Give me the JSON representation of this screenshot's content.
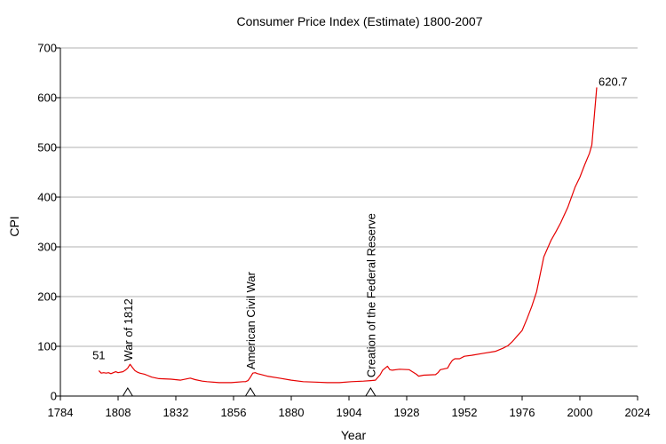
{
  "chart_data": {
    "type": "line",
    "title": "Consumer Price Index (Estimate) 1800-2007",
    "xlabel": "Year",
    "ylabel": "CPI",
    "xlim": [
      1784,
      2024
    ],
    "ylim": [
      0,
      700
    ],
    "x_ticks": [
      "1784",
      "1808",
      "1832",
      "1856",
      "1880",
      "1904",
      "1928",
      "1952",
      "1976",
      "2000",
      "2024"
    ],
    "y_ticks": [
      "0",
      "100",
      "200",
      "300",
      "400",
      "500",
      "600",
      "700"
    ],
    "grid": true,
    "line_color": "#e60000",
    "series": [
      {
        "x": [
          1800,
          1801,
          1802,
          1803,
          1804,
          1805,
          1806,
          1807,
          1808,
          1809,
          1810,
          1811,
          1812,
          1813,
          1814,
          1815,
          1816,
          1817,
          1818,
          1819,
          1820,
          1822,
          1825,
          1830,
          1834,
          1838,
          1840,
          1843,
          1845,
          1850,
          1855,
          1860,
          1861,
          1862,
          1863,
          1864,
          1865,
          1866,
          1867,
          1870,
          1875,
          1880,
          1885,
          1890,
          1895,
          1900,
          1905,
          1910,
          1913,
          1915,
          1917,
          1918,
          1920,
          1921,
          1922,
          1925,
          1929,
          1930,
          1932,
          1933,
          1935,
          1940,
          1941,
          1942,
          1945,
          1946,
          1947,
          1948,
          1950,
          1952,
          1955,
          1960,
          1965,
          1968,
          1970,
          1972,
          1974,
          1976,
          1978,
          1980,
          1982,
          1985,
          1988,
          1990,
          1992,
          1995,
          1998,
          2000,
          2002,
          2004,
          2005,
          2007
        ],
        "y": [
          51,
          46,
          47,
          46,
          47,
          45,
          47,
          49,
          47,
          48,
          49,
          52,
          56,
          64,
          57,
          51,
          48,
          46,
          45,
          44,
          42,
          38,
          35,
          34,
          32,
          36,
          33,
          30,
          29,
          27,
          27,
          29,
          29,
          31,
          38,
          46,
          47,
          45,
          44,
          40,
          36,
          32,
          29,
          28,
          27,
          27,
          29,
          30,
          31,
          32,
          43,
          52,
          60,
          53,
          52,
          54,
          53,
          50,
          44,
          40,
          42,
          43,
          47,
          53,
          56,
          65,
          72,
          75,
          75,
          80,
          82,
          86,
          90,
          96,
          101,
          110,
          121,
          132,
          155,
          180,
          210,
          280,
          313,
          330,
          348,
          380,
          420,
          440,
          465,
          488,
          505,
          620.7
        ]
      }
    ],
    "annotations": [
      {
        "text": "51",
        "x": 1800,
        "y": 51
      },
      {
        "text": "620.7",
        "x": 2007,
        "y": 620.7
      },
      {
        "text": "War of 1812",
        "x": 1812,
        "y": 65,
        "orientation": "vertical",
        "marker": "triangle"
      },
      {
        "text": "American Civil War",
        "x": 1863,
        "y": 48,
        "orientation": "vertical",
        "marker": "triangle"
      },
      {
        "text": "Creation of the Federal Reserve",
        "x": 1913,
        "y": 32,
        "orientation": "vertical",
        "marker": "triangle"
      }
    ]
  }
}
